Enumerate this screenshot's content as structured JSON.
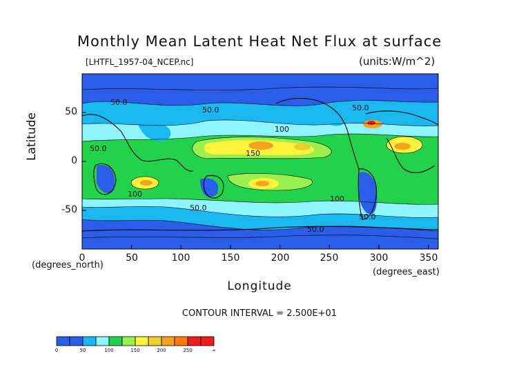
{
  "title": "Monthly Mean Latent Heat Net Flux at surface",
  "source_file": "[LHTFL_1957-04_NCEP.nc]",
  "units_label": "(units:W/m^2)",
  "x_axis": {
    "label": "Longitude",
    "units": "(degrees_east)",
    "ticks": [
      "0",
      "50",
      "100",
      "150",
      "200",
      "250",
      "300",
      "350"
    ],
    "range": [
      0,
      360
    ]
  },
  "y_axis": {
    "label": "Latitude",
    "units": "(degrees_north)",
    "ticks": [
      "50",
      "0",
      "-50"
    ],
    "range": [
      -90,
      90
    ]
  },
  "contour_interval": "CONTOUR INTERVAL = 2.500E+01",
  "contour_labels": [
    "50.0",
    "50.0",
    "50.0",
    "50.0",
    "100",
    "150",
    "100",
    "50.0",
    "100",
    "50.0",
    "50.0"
  ],
  "colorbar": {
    "ticks": [
      "0",
      "50",
      "100",
      "150",
      "200",
      "250",
      "∞"
    ],
    "colors": [
      "#2a5de8",
      "#19b8f0",
      "#8ef4ff",
      "#22d24a",
      "#9af04e",
      "#fff23a",
      "#e9d02e",
      "#f2a21d",
      "#ff7a00",
      "#ee1d1d"
    ]
  },
  "chart_data": {
    "type": "heatmap",
    "title": "Monthly Mean Latent Heat Net Flux at surface",
    "xlabel": "Longitude",
    "ylabel": "Latitude",
    "xlim": [
      0,
      360
    ],
    "ylim": [
      -90,
      90
    ],
    "units": "W/m^2",
    "contour_interval": 25,
    "levels": [
      0,
      50,
      100,
      150,
      200,
      250
    ]
  }
}
